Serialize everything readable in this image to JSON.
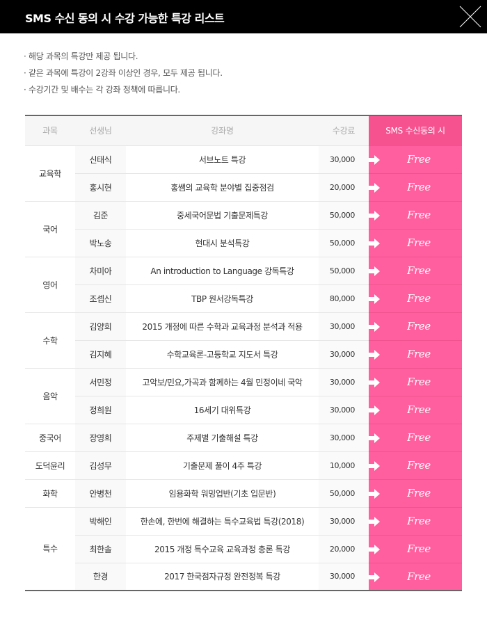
{
  "title": "SMS 수신 동의 시 수강 가능한 특강 리스트",
  "notes": [
    "· 해당 과목의 특강만 제공 됩니다.",
    "· 같은 과목에 특강이 2강좌 이상인 경우, 모두 제공 됩니다.",
    "· 수강기간 및 배수는 각 강좌 정책에 따릅니다."
  ],
  "columns": [
    "과목",
    "선생님",
    "강좌명",
    "수강료",
    "SMS 수신동의 시"
  ],
  "colors": {
    "header_bg": "#000000",
    "accent": "#ff5f9e",
    "accent_header": "#f5528f"
  },
  "groups": [
    {
      "subject": "교육학",
      "rows": [
        {
          "teacher": "신태식",
          "title": "서브노트 특강",
          "fee": "30,000",
          "benefit": "Free"
        },
        {
          "teacher": "홍시현",
          "title": "홍쌤의 교육학 분야별 집중점검",
          "fee": "20,000",
          "benefit": "Free"
        }
      ]
    },
    {
      "subject": "국어",
      "rows": [
        {
          "teacher": "김준",
          "title": "중세국어문법 기출문제특강",
          "fee": "50,000",
          "benefit": "Free"
        },
        {
          "teacher": "박노송",
          "title": "현대시 분석특강",
          "fee": "50,000",
          "benefit": "Free"
        }
      ]
    },
    {
      "subject": "영어",
      "rows": [
        {
          "teacher": "차미아",
          "title": "An introduction to Language 강독특강",
          "fee": "50,000",
          "benefit": "Free"
        },
        {
          "teacher": "조셉신",
          "title": "TBP 원서강독특강",
          "fee": "80,000",
          "benefit": "Free"
        }
      ]
    },
    {
      "subject": "수학",
      "rows": [
        {
          "teacher": "김양희",
          "title": "2015 개정에 따른 수학과 교육과정 분석과 적용",
          "fee": "30,000",
          "benefit": "Free"
        },
        {
          "teacher": "김지혜",
          "title": "수학교육론-고등학교 지도서 특강",
          "fee": "30,000",
          "benefit": "Free"
        }
      ]
    },
    {
      "subject": "음악",
      "rows": [
        {
          "teacher": "서민정",
          "title": "고악보/민요,가곡과 함께하는 4월 민정이네 국악",
          "fee": "30,000",
          "benefit": "Free"
        },
        {
          "teacher": "정희원",
          "title": "16세기 대위특강",
          "fee": "30,000",
          "benefit": "Free"
        }
      ]
    },
    {
      "subject": "중국어",
      "rows": [
        {
          "teacher": "장영희",
          "title": "주제별 기출해설 특강",
          "fee": "30,000",
          "benefit": "Free"
        }
      ]
    },
    {
      "subject": "도덕윤리",
      "rows": [
        {
          "teacher": "김성무",
          "title": "기출문제 풀이 4주 특강",
          "fee": "10,000",
          "benefit": "Free"
        }
      ]
    },
    {
      "subject": "화학",
      "rows": [
        {
          "teacher": "안병천",
          "title": "임용화학 워밍업반(기초 입문반)",
          "fee": "50,000",
          "benefit": "Free"
        }
      ]
    },
    {
      "subject": "특수",
      "rows": [
        {
          "teacher": "박해인",
          "title": "한손에, 한번에 해결하는 특수교육법 특강(2018)",
          "fee": "30,000",
          "benefit": "Free"
        },
        {
          "teacher": "최한솔",
          "title": "2015 개정 특수교육 교육과정 총론 특강",
          "fee": "20,000",
          "benefit": "Free"
        },
        {
          "teacher": "한경",
          "title": "2017 한국점자규정 완전정복 특강",
          "fee": "30,000",
          "benefit": "Free"
        }
      ]
    }
  ]
}
